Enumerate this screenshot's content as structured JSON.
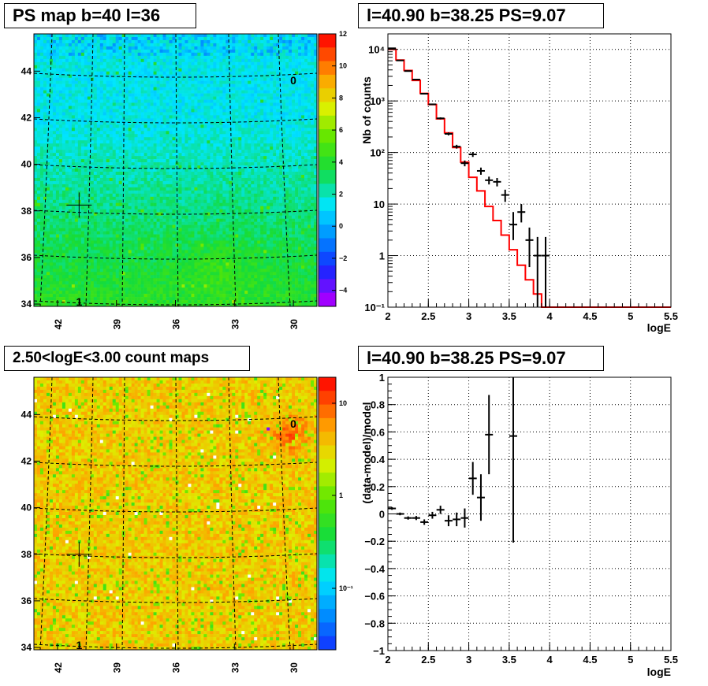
{
  "panels": {
    "map1_title": "PS map b=40 l=36",
    "spec_title": "l=40.90 b=38.25 PS=9.07",
    "map2_title": "2.50<logE<3.00 count maps",
    "resid_title": "l=40.90 b=38.25 PS=9.07"
  },
  "chart_data": [
    {
      "type": "heatmap",
      "name": "ps-map",
      "title": "PS map b=40 l=36",
      "x_ticks": [
        "42",
        "39",
        "36",
        "33",
        "30"
      ],
      "y_ticks": [
        "44",
        "42",
        "40",
        "38",
        "36",
        "34"
      ],
      "xlim": [
        43.2,
        28.8
      ],
      "ylim": [
        33.9,
        45.6
      ],
      "colorbar_ticks": [
        "12",
        "10",
        "8",
        "6",
        "4",
        "2",
        "0",
        "−2",
        "−4"
      ],
      "colorbar_range": [
        -5,
        12
      ],
      "annotations": [
        {
          "text": "0",
          "l": 30.0,
          "b": 43.6
        },
        {
          "text": "1",
          "l": 40.9,
          "b": 34.1
        }
      ],
      "marker": {
        "l": 40.9,
        "b": 38.25
      },
      "colors": {
        "low": "#00e8ff",
        "mid": "#22d840",
        "high": "#c8e800"
      }
    },
    {
      "type": "line",
      "name": "spectrum",
      "title": "l=40.90 b=38.25 PS=9.07",
      "xlabel": "logE",
      "ylabel": "Nb of counts",
      "xlim": [
        2.0,
        5.5
      ],
      "ylim": [
        0.1,
        20000
      ],
      "yscale": "log",
      "x_ticks": [
        "2",
        "2.5",
        "3",
        "3.5",
        "4",
        "4.5",
        "5",
        "5.5"
      ],
      "y_ticks": [
        "10⁻¹",
        "1",
        "10",
        "10²",
        "10³",
        "10⁴"
      ],
      "grid": true,
      "model": {
        "color": "#ff0000",
        "bins": [
          2.0,
          2.1,
          2.2,
          2.3,
          2.4,
          2.5,
          2.6,
          2.7,
          2.8,
          2.9,
          3.0,
          3.1,
          3.2,
          3.3,
          3.4,
          3.5,
          3.6,
          3.7,
          3.8,
          3.9,
          4.0,
          5.5
        ],
        "values": [
          10000,
          6200,
          3900,
          2500,
          1400,
          850,
          450,
          240,
          125,
          65,
          33,
          18,
          9,
          4.8,
          2.5,
          1.3,
          0.65,
          0.34,
          0.18,
          0.1,
          0.1
        ]
      },
      "data": {
        "color": "#000000",
        "x": [
          2.05,
          2.15,
          2.25,
          2.35,
          2.45,
          2.55,
          2.65,
          2.75,
          2.85,
          2.95,
          3.05,
          3.15,
          3.25,
          3.35,
          3.45,
          3.55,
          3.65,
          3.75,
          3.85,
          3.95
        ],
        "y": [
          10500,
          6100,
          3800,
          2600,
          1380,
          860,
          460,
          230,
          130,
          62,
          92,
          44,
          29,
          27,
          15,
          4,
          7,
          2,
          1,
          1
        ],
        "ylo": [
          10400,
          6020,
          3740,
          2550,
          1343,
          831,
          439,
          215,
          119,
          54,
          82,
          37,
          24,
          22,
          11,
          2,
          4.4,
          0.6,
          0.1,
          0.1
        ],
        "yhi": [
          10600,
          6180,
          3860,
          2650,
          1417,
          889,
          481,
          245,
          141,
          70,
          102,
          51,
          34,
          32,
          19,
          7,
          10,
          3.5,
          2.3,
          2.3
        ]
      }
    },
    {
      "type": "heatmap",
      "name": "count-map",
      "title": "2.50<logE<3.00 count maps",
      "x_ticks": [
        "42",
        "39",
        "36",
        "33",
        "30"
      ],
      "y_ticks": [
        "44",
        "42",
        "40",
        "38",
        "36",
        "34"
      ],
      "xlim": [
        43.2,
        28.8
      ],
      "ylim": [
        33.9,
        45.6
      ],
      "colorbar_scale": "log",
      "colorbar_ticks": [
        "10",
        "1",
        "10⁻¹"
      ],
      "annotations": [
        {
          "text": "0",
          "l": 30.0,
          "b": 43.6
        },
        {
          "text": "1",
          "l": 40.9,
          "b": 34.1
        }
      ],
      "marker": {
        "l": 40.9,
        "b": 38.0
      },
      "colors": {
        "low": "#ffe000",
        "mid": "#ffa000",
        "high": "#ff3000"
      }
    },
    {
      "type": "scatter",
      "name": "residuals",
      "title": "l=40.90 b=38.25 PS=9.07",
      "xlabel": "logE",
      "ylabel": "(data-model)/model",
      "xlim": [
        2.0,
        5.5
      ],
      "ylim": [
        -1.0,
        1.0
      ],
      "x_ticks": [
        "2",
        "2.5",
        "3",
        "3.5",
        "4",
        "4.5",
        "5",
        "5.5"
      ],
      "y_ticks": [
        "1",
        "0.8",
        "0.6",
        "0.4",
        "0.2",
        "0",
        "−0.2",
        "−0.4",
        "−0.6",
        "−0.8",
        "−1"
      ],
      "grid": true,
      "data": {
        "x": [
          2.05,
          2.15,
          2.25,
          2.35,
          2.45,
          2.55,
          2.65,
          2.75,
          2.85,
          2.95,
          3.05,
          3.15,
          3.25,
          3.55
        ],
        "y": [
          0.04,
          0.0,
          -0.03,
          -0.03,
          -0.06,
          -0.01,
          0.03,
          -0.05,
          -0.04,
          -0.03,
          0.26,
          0.12,
          0.58,
          0.57
        ],
        "err": [
          0.01,
          0.01,
          0.012,
          0.015,
          0.02,
          0.025,
          0.03,
          0.04,
          0.05,
          0.07,
          0.12,
          0.17,
          0.29,
          0.78
        ]
      }
    }
  ]
}
